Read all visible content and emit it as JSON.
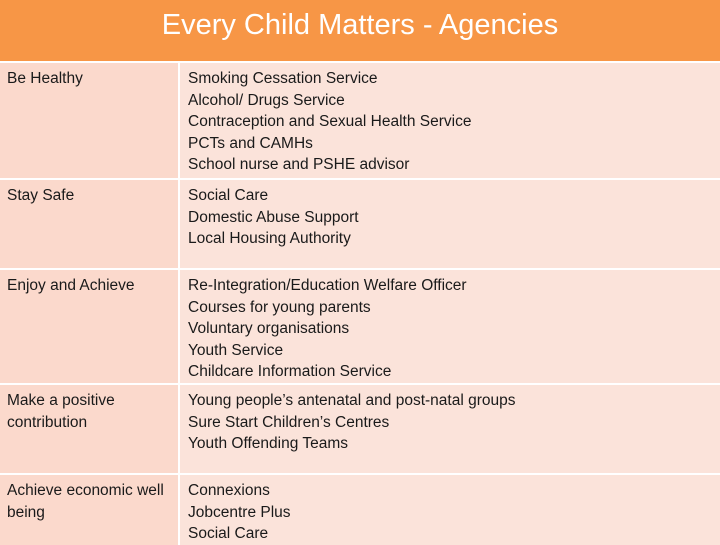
{
  "title": "Every Child Matters - Agencies",
  "rows": [
    {
      "outcome": "Be Healthy",
      "services": [
        "Smoking Cessation Service",
        "Alcohol/ Drugs Service",
        "Contraception and Sexual Health Service",
        "PCTs and CAMHs",
        "School nurse and PSHE advisor"
      ]
    },
    {
      "outcome": "Stay Safe",
      "services": [
        "Social Care",
        "Domestic Abuse Support",
        "Local Housing Authority"
      ]
    },
    {
      "outcome": "Enjoy and Achieve",
      "services": [
        "Re-Integration/Education Welfare Officer",
        "Courses for young parents",
        "Voluntary organisations",
        "Youth Service",
        "Childcare Information Service"
      ]
    },
    {
      "outcome": "Make a positive contribution",
      "services": [
        "Young people’s antenatal and post-natal groups",
        "Sure Start Children’s Centres",
        "Youth Offending Teams"
      ]
    },
    {
      "outcome": "Achieve economic well being",
      "services": [
        "Connexions",
        "Jobcentre Plus",
        "Social Care"
      ]
    }
  ],
  "colors": {
    "header": "#f79646",
    "outcome_cell": "#fbd9cc",
    "services_cell": "#fbe3da"
  }
}
